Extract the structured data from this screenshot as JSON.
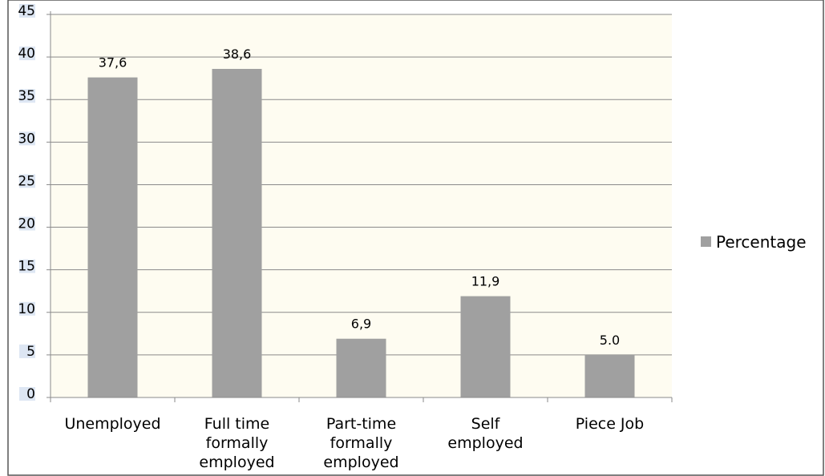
{
  "chart_data": {
    "type": "bar",
    "categories": [
      "Unemployed",
      "Full time formally employed",
      "Part-time formally employed",
      "Self employed",
      "Piece Job"
    ],
    "category_lines": [
      [
        "Unemployed"
      ],
      [
        "Full time",
        "formally",
        "employed"
      ],
      [
        "Part-time",
        "formally",
        "employed"
      ],
      [
        "Self",
        "employed"
      ],
      [
        "Piece Job"
      ]
    ],
    "series": [
      {
        "name": "Percentage",
        "values": [
          37.6,
          38.6,
          6.9,
          11.9,
          5.0
        ]
      }
    ],
    "data_labels": [
      "37,6",
      "38,6",
      "6,9",
      "11,9",
      "5.0"
    ],
    "yticks": [
      "0",
      "5",
      "10",
      "15",
      "20",
      "25",
      "30",
      "35",
      "40",
      "45"
    ],
    "ylim": [
      0,
      45
    ],
    "title": "",
    "xlabel": "",
    "ylabel": "",
    "grid": true,
    "legend": "right",
    "colors": {
      "bar": "#a0a0a0",
      "plot_bg": "#fefcf1",
      "grid": "#8a8a8a",
      "axis": "#8a8a8a",
      "tick_bg": "#dde6f3",
      "border": "#555555"
    }
  }
}
